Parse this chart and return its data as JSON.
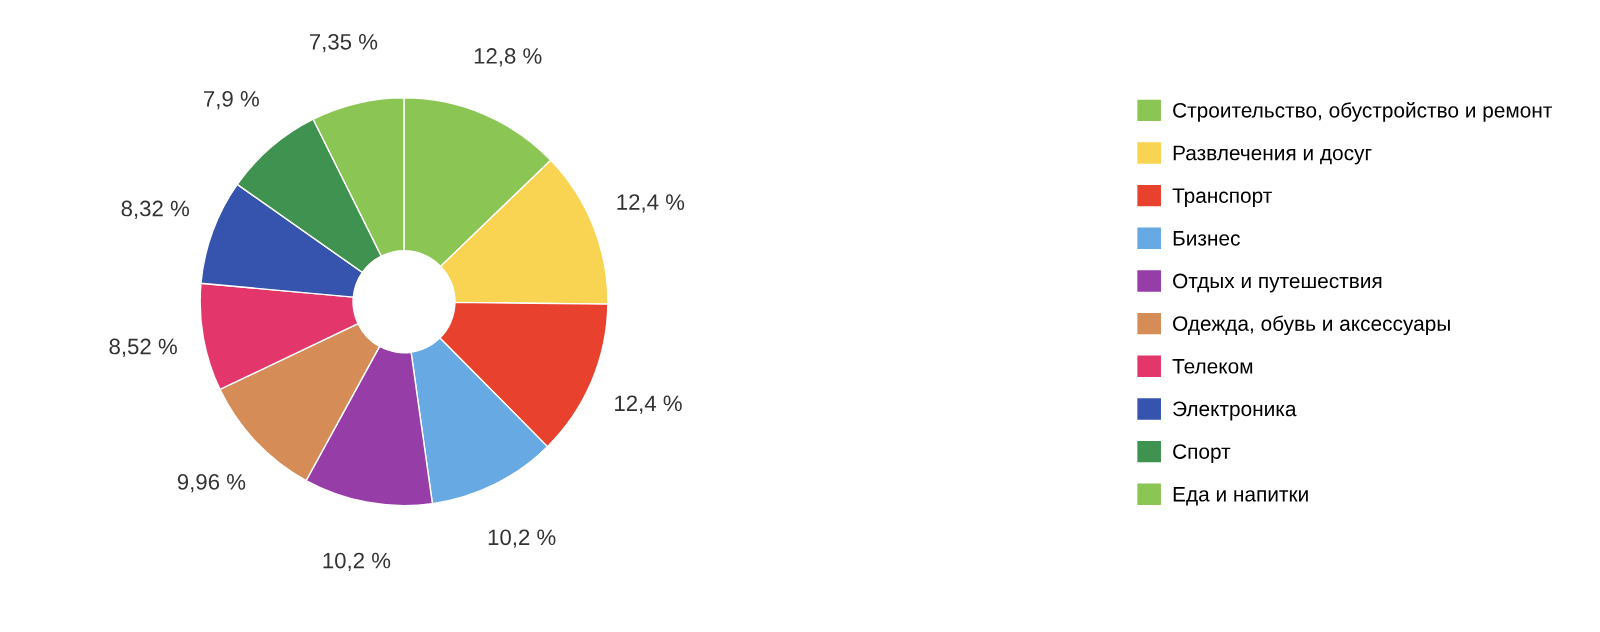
{
  "chart_data": {
    "type": "donut",
    "categories": [
      "Строительство, обустройство и ремонт",
      "Развлечения и досуг",
      "Транспорт",
      "Бизнес",
      "Отдых и путешествия",
      "Одежда, обувь и аксессуары",
      "Телеком",
      "Электроника",
      "Спорт",
      "Еда и напитки"
    ],
    "values": [
      12.8,
      12.4,
      12.4,
      10.2,
      10.2,
      9.96,
      8.52,
      8.32,
      7.9,
      7.35
    ],
    "value_labels": [
      "12,8 %",
      "12,4 %",
      "12,4 %",
      "10,2 %",
      "10,2 %",
      "9,96 %",
      "8,52 %",
      "8,32 %",
      "7,9 %",
      "7,35 %"
    ],
    "colors": [
      "#8bc655",
      "#f9d352",
      "#e8412e",
      "#67a9e3",
      "#963da8",
      "#d58c56",
      "#e3376b",
      "#3654ae",
      "#3f924f",
      "#8bc655"
    ],
    "legend": "right"
  }
}
